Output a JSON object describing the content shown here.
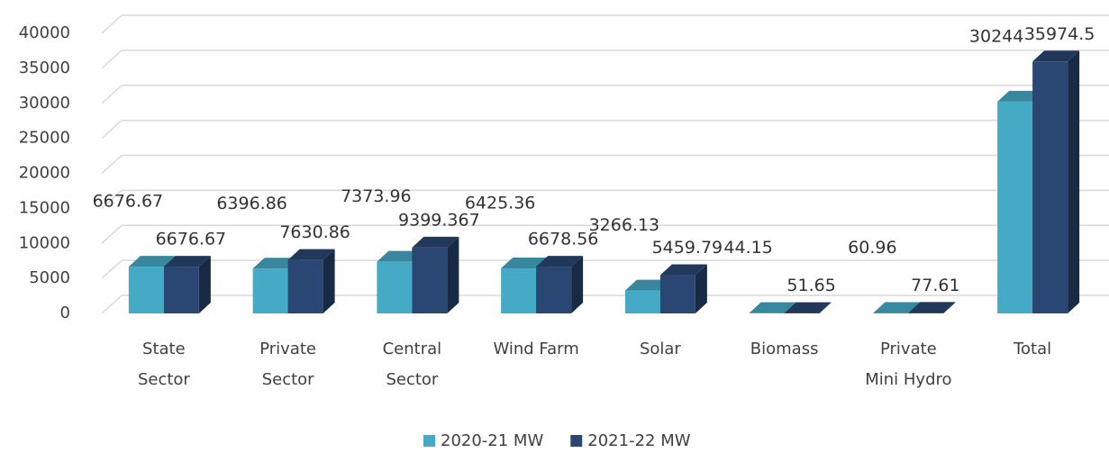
{
  "chart_data": {
    "type": "bar3d",
    "categories": [
      [
        "State",
        "Sector"
      ],
      [
        "Private",
        "Sector"
      ],
      [
        "Central",
        "Sector"
      ],
      [
        "Wind Farm"
      ],
      [
        "Solar"
      ],
      [
        "Biomass"
      ],
      [
        "Private",
        "Mini Hydro"
      ],
      [
        "Total"
      ]
    ],
    "series": [
      {
        "name": "2020-21 MW",
        "color": "#45aac6",
        "values": [
          6676.67,
          6396.86,
          7373.96,
          6425.36,
          3266.13,
          44.15,
          60.96,
          30244
        ]
      },
      {
        "name": "2021-22 MW",
        "color": "#2a4672",
        "values": [
          6676.67,
          7630.86,
          9399.367,
          6678.56,
          5459.79,
          51.65,
          77.61,
          35974.5
        ]
      }
    ],
    "ylim": [
      0,
      40000
    ],
    "yticks": [
      0,
      5000,
      10000,
      15000,
      20000,
      25000,
      30000,
      35000,
      40000
    ],
    "grid": true,
    "legend": "bottom"
  }
}
